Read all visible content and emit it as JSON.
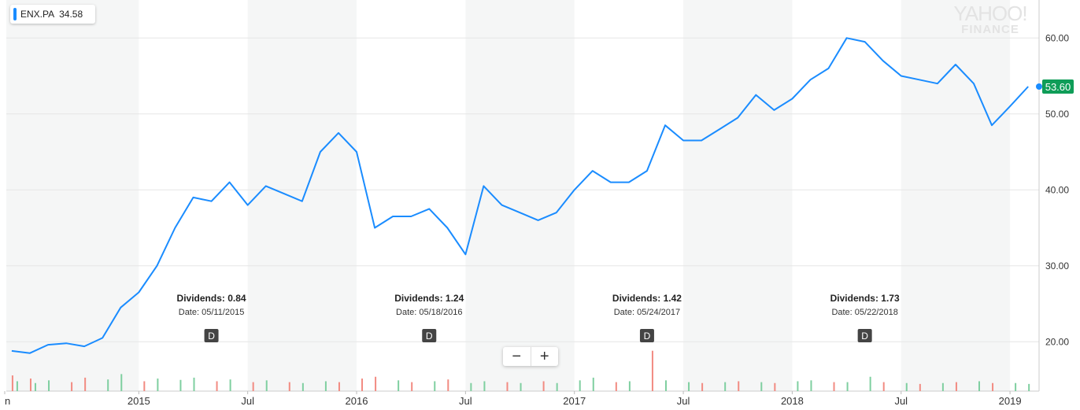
{
  "legend": {
    "symbol": "ENX.PA",
    "value": "34.58",
    "color": "#1a8cff"
  },
  "logo": {
    "line1": "YAHOO!",
    "line2": "FINANCE"
  },
  "zoom": {
    "minus": "−",
    "plus": "+"
  },
  "chart_data": {
    "type": "line",
    "title": "",
    "ylabel": "",
    "xlabel": "",
    "ylim": [
      13.5,
      65
    ],
    "grid": true,
    "x_start": "2014-06",
    "y_ticks": [
      "20.00",
      "30.00",
      "40.00",
      "50.00",
      "60.00"
    ],
    "x_ticks": [
      {
        "label": "n",
        "date": "2014-06"
      },
      {
        "label": "2015",
        "date": "2015-01"
      },
      {
        "label": "Jul",
        "date": "2015-07"
      },
      {
        "label": "2016",
        "date": "2016-01"
      },
      {
        "label": "Jul",
        "date": "2016-07"
      },
      {
        "label": "2017",
        "date": "2017-01"
      },
      {
        "label": "Jul",
        "date": "2017-07"
      },
      {
        "label": "2018",
        "date": "2018-01"
      },
      {
        "label": "Jul",
        "date": "2018-07"
      },
      {
        "label": "2019",
        "date": "2019-01"
      }
    ],
    "last_price": "53.60",
    "line_color": "#1a8cff",
    "last_price_color": "#0f9d58",
    "series": [
      {
        "dates": [
          "2014-06",
          "2014-07",
          "2014-08",
          "2014-09",
          "2014-10",
          "2014-11",
          "2014-12",
          "2015-01",
          "2015-02",
          "2015-03",
          "2015-04",
          "2015-05",
          "2015-06",
          "2015-07",
          "2015-08",
          "2015-09",
          "2015-10",
          "2015-11",
          "2015-12",
          "2016-01",
          "2016-02",
          "2016-03",
          "2016-04",
          "2016-05",
          "2016-06",
          "2016-07",
          "2016-08",
          "2016-09",
          "2016-10",
          "2016-11",
          "2016-12",
          "2017-01",
          "2017-02",
          "2017-03",
          "2017-04",
          "2017-05",
          "2017-06",
          "2017-07",
          "2017-08",
          "2017-09",
          "2017-10",
          "2017-11",
          "2017-12",
          "2018-01",
          "2018-02",
          "2018-03",
          "2018-04",
          "2018-05",
          "2018-06",
          "2018-07",
          "2018-08",
          "2018-09",
          "2018-10",
          "2018-11",
          "2018-12",
          "2019-01",
          "2019-02"
        ],
        "values": [
          18.8,
          18.5,
          19.6,
          19.8,
          19.4,
          20.5,
          24.5,
          26.5,
          30.0,
          35.0,
          39.0,
          38.5,
          41.0,
          38.0,
          40.5,
          39.5,
          38.5,
          45.0,
          47.5,
          45.0,
          35.0,
          36.5,
          36.5,
          37.5,
          35.0,
          31.5,
          40.5,
          38.0,
          37.0,
          36.0,
          37.0,
          40.0,
          42.5,
          41.0,
          41.0,
          42.5,
          48.5,
          46.5,
          46.5,
          48.0,
          49.5,
          52.5,
          50.5,
          52.0,
          54.5,
          56.0,
          60.0,
          59.5,
          57.0,
          55.0,
          54.5,
          54.0,
          56.5,
          54.0,
          48.5,
          51.0,
          53.6
        ]
      }
    ],
    "volume": {
      "baseline_pct": 0,
      "bars": [
        {
          "date": "2014-06",
          "v": 0.35,
          "c": "r"
        },
        {
          "date": "2014-06",
          "v": 0.22,
          "c": "g"
        },
        {
          "date": "2014-07",
          "v": 0.28,
          "c": "r"
        },
        {
          "date": "2014-07",
          "v": 0.18,
          "c": "g"
        },
        {
          "date": "2014-08",
          "v": 0.24,
          "c": "g"
        },
        {
          "date": "2014-09",
          "v": 0.2,
          "c": "r"
        },
        {
          "date": "2014-10",
          "v": 0.3,
          "c": "r"
        },
        {
          "date": "2014-11",
          "v": 0.26,
          "c": "g"
        },
        {
          "date": "2014-12",
          "v": 0.38,
          "c": "g"
        },
        {
          "date": "2015-01",
          "v": 0.22,
          "c": "r"
        },
        {
          "date": "2015-02",
          "v": 0.28,
          "c": "g"
        },
        {
          "date": "2015-03",
          "v": 0.25,
          "c": "g"
        },
        {
          "date": "2015-04",
          "v": 0.3,
          "c": "g"
        },
        {
          "date": "2015-05",
          "v": 0.22,
          "c": "r"
        },
        {
          "date": "2015-06",
          "v": 0.26,
          "c": "g"
        },
        {
          "date": "2015-07",
          "v": 0.2,
          "c": "r"
        },
        {
          "date": "2015-08",
          "v": 0.24,
          "c": "g"
        },
        {
          "date": "2015-09",
          "v": 0.2,
          "c": "r"
        },
        {
          "date": "2015-10",
          "v": 0.18,
          "c": "g"
        },
        {
          "date": "2015-11",
          "v": 0.22,
          "c": "g"
        },
        {
          "date": "2015-12",
          "v": 0.2,
          "c": "r"
        },
        {
          "date": "2016-01",
          "v": 0.28,
          "c": "r"
        },
        {
          "date": "2016-02",
          "v": 0.32,
          "c": "r"
        },
        {
          "date": "2016-03",
          "v": 0.24,
          "c": "g"
        },
        {
          "date": "2016-04",
          "v": 0.2,
          "c": "r"
        },
        {
          "date": "2016-05",
          "v": 0.22,
          "c": "g"
        },
        {
          "date": "2016-06",
          "v": 0.26,
          "c": "r"
        },
        {
          "date": "2016-07",
          "v": 0.18,
          "c": "g"
        },
        {
          "date": "2016-08",
          "v": 0.22,
          "c": "g"
        },
        {
          "date": "2016-09",
          "v": 0.2,
          "c": "r"
        },
        {
          "date": "2016-10",
          "v": 0.18,
          "c": "g"
        },
        {
          "date": "2016-11",
          "v": 0.22,
          "c": "r"
        },
        {
          "date": "2016-12",
          "v": 0.18,
          "c": "g"
        },
        {
          "date": "2017-01",
          "v": 0.24,
          "c": "g"
        },
        {
          "date": "2017-02",
          "v": 0.3,
          "c": "g"
        },
        {
          "date": "2017-03",
          "v": 0.2,
          "c": "r"
        },
        {
          "date": "2017-04",
          "v": 0.22,
          "c": "g"
        },
        {
          "date": "2017-05",
          "v": 0.9,
          "c": "r"
        },
        {
          "date": "2017-06",
          "v": 0.24,
          "c": "g"
        },
        {
          "date": "2017-07",
          "v": 0.2,
          "c": "g"
        },
        {
          "date": "2017-08",
          "v": 0.18,
          "c": "r"
        },
        {
          "date": "2017-09",
          "v": 0.2,
          "c": "g"
        },
        {
          "date": "2017-10",
          "v": 0.22,
          "c": "r"
        },
        {
          "date": "2017-11",
          "v": 0.2,
          "c": "g"
        },
        {
          "date": "2017-12",
          "v": 0.18,
          "c": "r"
        },
        {
          "date": "2018-01",
          "v": 0.22,
          "c": "g"
        },
        {
          "date": "2018-02",
          "v": 0.24,
          "c": "g"
        },
        {
          "date": "2018-03",
          "v": 0.2,
          "c": "r"
        },
        {
          "date": "2018-04",
          "v": 0.2,
          "c": "g"
        },
        {
          "date": "2018-05",
          "v": 0.32,
          "c": "g"
        },
        {
          "date": "2018-06",
          "v": 0.2,
          "c": "r"
        },
        {
          "date": "2018-07",
          "v": 0.18,
          "c": "g"
        },
        {
          "date": "2018-08",
          "v": 0.16,
          "c": "r"
        },
        {
          "date": "2018-09",
          "v": 0.18,
          "c": "g"
        },
        {
          "date": "2018-10",
          "v": 0.2,
          "c": "r"
        },
        {
          "date": "2018-11",
          "v": 0.22,
          "c": "g"
        },
        {
          "date": "2018-12",
          "v": 0.18,
          "c": "r"
        },
        {
          "date": "2019-01",
          "v": 0.18,
          "c": "g"
        },
        {
          "date": "2019-02",
          "v": 0.16,
          "c": "g"
        }
      ]
    },
    "dividends": [
      {
        "label": "Dividends: 0.84",
        "date_text": "Date: 05/11/2015",
        "marker": "D",
        "date": "2015-05"
      },
      {
        "label": "Dividends: 1.24",
        "date_text": "Date: 05/18/2016",
        "marker": "D",
        "date": "2016-05"
      },
      {
        "label": "Dividends: 1.42",
        "date_text": "Date: 05/24/2017",
        "marker": "D",
        "date": "2017-05"
      },
      {
        "label": "Dividends: 1.73",
        "date_text": "Date: 05/22/2018",
        "marker": "D",
        "date": "2018-05"
      }
    ]
  }
}
